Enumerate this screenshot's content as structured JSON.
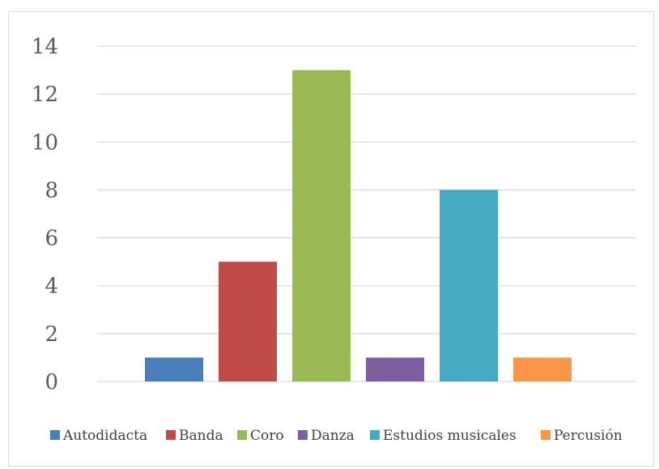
{
  "chart_data": {
    "type": "bar",
    "title": "",
    "xlabel": "",
    "ylabel": "",
    "ylim": [
      0,
      14
    ],
    "yticks": [
      0,
      2,
      4,
      6,
      8,
      10,
      12,
      14
    ],
    "grid": true,
    "legend_position": "bottom",
    "show_category_axis_labels": false,
    "categories": [
      "Autodidacta",
      "Banda",
      "Coro",
      "Danza",
      "Estudios musicales",
      "Percusión"
    ],
    "values": [
      1,
      5,
      13,
      1,
      8,
      1
    ],
    "colors": [
      "#4a7ebb",
      "#be4b48",
      "#98b954",
      "#7d60a0",
      "#46aac5",
      "#f79646"
    ]
  }
}
